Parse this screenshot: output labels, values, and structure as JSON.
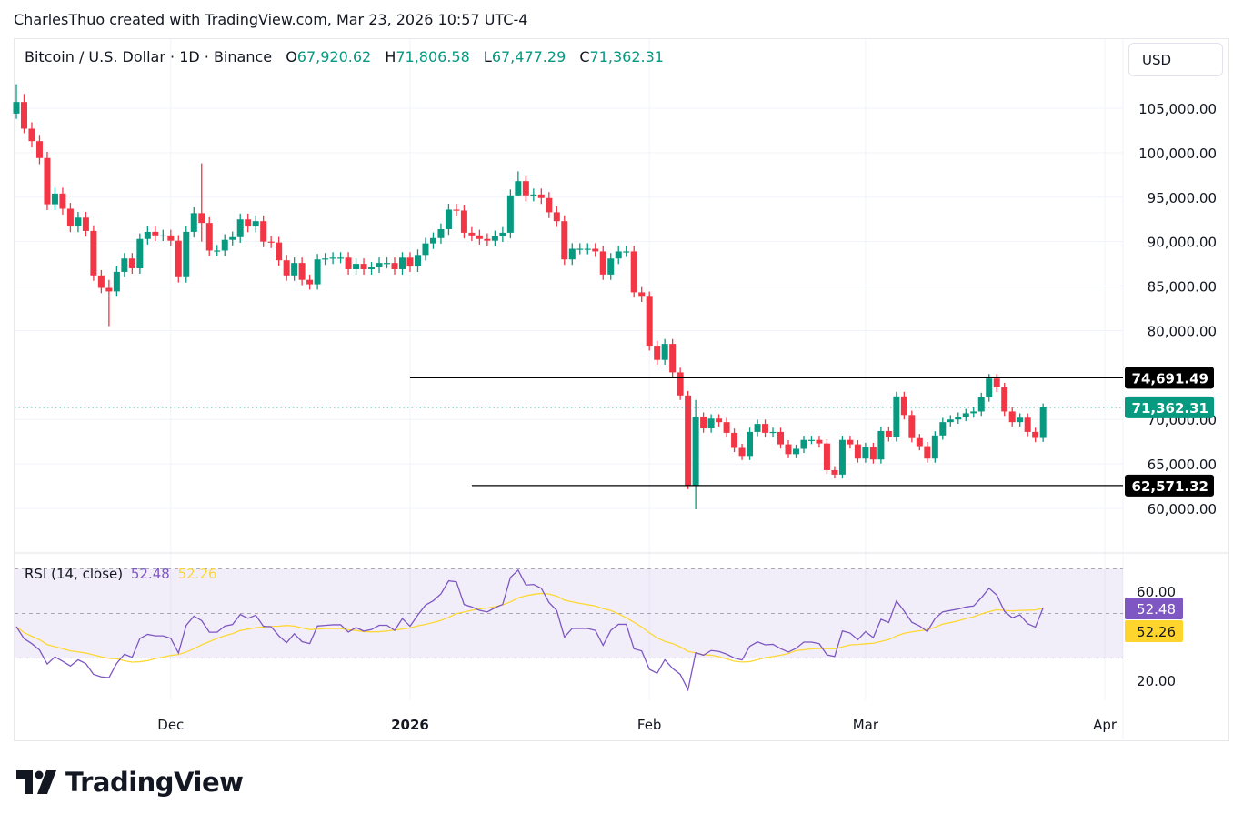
{
  "credit": "CharlesThuo created with TradingView.com, Mar 23, 2026 10:57 UTC-4",
  "legend": {
    "symbol": "Bitcoin / U.S. Dollar · 1D · Binance",
    "o_label": "O",
    "o": "67,920.62",
    "h_label": "H",
    "h": "71,806.58",
    "l_label": "L",
    "l": "67,477.29",
    "c_label": "C",
    "c": "71,362.31"
  },
  "currency_button": "USD",
  "rsi_legend": {
    "label": "RSI (14, close)",
    "rsi": "52.48",
    "ma": "52.26"
  },
  "logo_text": "TradingView",
  "colors": {
    "up": "#089981",
    "down": "#f23645",
    "rsi": "#7e57c2",
    "rsi_ma": "#fdd835",
    "level": "#000000"
  },
  "chart_data": {
    "type": "candlestick",
    "title": "Bitcoin / U.S. Dollar · 1D · Binance",
    "interval": "1D",
    "first_open": 104400,
    "closes": [
      105700,
      102700,
      101300,
      99400,
      94200,
      95400,
      93700,
      91700,
      92700,
      91200,
      86200,
      84800,
      84400,
      86600,
      88100,
      87000,
      90300,
      91100,
      90700,
      90700,
      90100,
      86000,
      91100,
      93200,
      92100,
      89000,
      89000,
      90200,
      90500,
      92500,
      91700,
      92300,
      90000,
      89900,
      87900,
      86200,
      87600,
      85700,
      85200,
      88000,
      88100,
      88200,
      88200,
      86900,
      87500,
      86900,
      87100,
      87600,
      87600,
      86900,
      88200,
      87200,
      88500,
      89800,
      90400,
      91400,
      93600,
      93500,
      91000,
      90700,
      90300,
      90100,
      90600,
      91000,
      95200,
      96800,
      95200,
      95300,
      94900,
      93300,
      92300,
      88000,
      89200,
      89200,
      89200,
      88900,
      86300,
      88100,
      88900,
      88900,
      84300,
      83800,
      78300,
      76700,
      78500,
      75300,
      72700,
      62600,
      70300,
      69000,
      70100,
      69700,
      68500,
      66800,
      65900,
      68600,
      69500,
      68500,
      68600,
      67200,
      66100,
      66700,
      67700,
      67700,
      67300,
      64300,
      63800,
      67700,
      67200,
      65600,
      66900,
      65500,
      68700,
      68000,
      72600,
      70500,
      67900,
      67000,
      65600,
      68200,
      69700,
      70000,
      70300,
      70700,
      70900,
      72500,
      74600,
      73600,
      70900,
      69700,
      70200,
      68600,
      67920,
      71362.31
    ],
    "wick_overrides": [
      {
        "index": 0,
        "high": 107700,
        "low": 103800
      },
      {
        "index": 1,
        "high": 106600,
        "low": 102200
      },
      {
        "index": 12,
        "high": 85700,
        "low": 80500
      },
      {
        "index": 24,
        "high": 98800,
        "low": 90000
      },
      {
        "index": 65,
        "high": 97900,
        "low": 95200
      },
      {
        "index": 88,
        "high": 72200,
        "low": 59900
      },
      {
        "index": 133,
        "high": 71806.58,
        "low": 67477.29
      }
    ],
    "y_ticks": [
      "105,000.00",
      "100,000.00",
      "95,000.00",
      "90,000.00",
      "85,000.00",
      "80,000.00",
      "70,000.00",
      "65,000.00",
      "60,000.00"
    ],
    "y_tick_values": [
      105000,
      100000,
      95000,
      90000,
      85000,
      80000,
      70000,
      65000,
      60000
    ],
    "x_ticks": [
      {
        "label": "Dec",
        "day": 20
      },
      {
        "label": "2026",
        "day": 51
      },
      {
        "label": "Feb",
        "day": 82
      },
      {
        "label": "Mar",
        "day": 110
      },
      {
        "label": "Apr",
        "day": 141
      }
    ],
    "horizontal_levels": [
      {
        "value": 74691.49,
        "label": "74,691.49",
        "start_day": 51
      },
      {
        "value": 62571.32,
        "label": "62,571.32",
        "start_day": 59
      }
    ],
    "last_price": {
      "value": 71362.31,
      "label": "71,362.31"
    },
    "ylim": [
      55000,
      107700
    ],
    "rsi": {
      "period": 14,
      "ma_period": 14,
      "levels": [
        70,
        50,
        30
      ],
      "y_ticks": [
        "60.00",
        "20.00"
      ],
      "y_tick_values": [
        60,
        20
      ],
      "last_rsi": 52.48,
      "last_rsi_label": "52.48",
      "last_ma": 52.26,
      "last_ma_label": "52.26"
    }
  }
}
